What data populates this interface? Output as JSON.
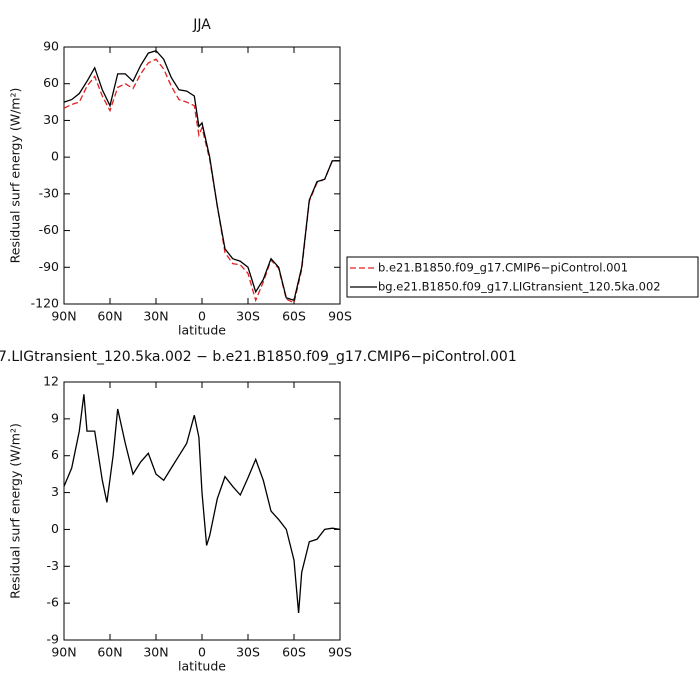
{
  "chart_data": [
    {
      "type": "line",
      "title": "JJA",
      "xlabel": "latitude",
      "ylabel": "Residual surf energy (W/m²)",
      "x": [
        90,
        85,
        80,
        75,
        70,
        65,
        60,
        55,
        50,
        45,
        40,
        35,
        30,
        25,
        20,
        15,
        10,
        5,
        2,
        0,
        -5,
        -10,
        -15,
        -20,
        -25,
        -30,
        -35,
        -40,
        -45,
        -50,
        -55,
        -60,
        -65,
        -70,
        -75,
        -80,
        -85,
        -90
      ],
      "series": [
        {
          "name": "b.e21.B1850.f09_g17.CMIP6−piControl.001",
          "color": "#e02020",
          "line_style": "dashed",
          "values": [
            40,
            43,
            45,
            58,
            66,
            50,
            38,
            57,
            60,
            56,
            68,
            77,
            80,
            72,
            58,
            47,
            45,
            42,
            18,
            24,
            -2,
            -40,
            -78,
            -87,
            -88,
            -95,
            -117,
            -102,
            -84,
            -91,
            -116,
            -119,
            -92,
            -36,
            -21,
            -18,
            -3,
            -3
          ]
        },
        {
          "name": "bg.e21.B1850.f09_g17.LIGtransient_120.5ka.002",
          "color": "#000000",
          "line_style": "solid",
          "values": [
            45,
            47,
            52,
            62,
            73,
            55,
            42,
            68,
            68,
            62,
            75,
            85,
            87,
            80,
            65,
            55,
            54,
            50,
            25,
            28,
            0,
            -40,
            -75,
            -83,
            -85,
            -90,
            -110,
            -100,
            -83,
            -90,
            -115,
            -117,
            -90,
            -35,
            -20,
            -18,
            -3,
            -3
          ]
        }
      ],
      "xlim": [
        90,
        -90
      ],
      "xticks": [
        {
          "value": 90,
          "label": "90N"
        },
        {
          "value": 60,
          "label": "60N"
        },
        {
          "value": 30,
          "label": "30N"
        },
        0,
        {
          "value": -30,
          "label": "30S"
        },
        {
          "value": -60,
          "label": "60S"
        },
        {
          "value": -90,
          "label": "90S"
        }
      ],
      "ylim": [
        -120,
        90
      ],
      "yticks": [
        -120,
        -90,
        -60,
        -30,
        0,
        30,
        60,
        90
      ],
      "legend": "outside-right"
    },
    {
      "type": "line",
      "title": "7.LIGtransient_120.5ka.002 − b.e21.B1850.f09_g17.CMIP6−piControl.001",
      "xlabel": "latitude",
      "ylabel": "Residual surf energy (W/m²)",
      "x": [
        90,
        85,
        80,
        77,
        75,
        70,
        65,
        62,
        58,
        55,
        50,
        45,
        40,
        35,
        30,
        25,
        20,
        15,
        10,
        5,
        2,
        0,
        -3,
        -5,
        -10,
        -15,
        -20,
        -25,
        -30,
        -35,
        -40,
        -45,
        -50,
        -55,
        -60,
        -63,
        -65,
        -70,
        -75,
        -80,
        -85,
        -90
      ],
      "color": "#000000",
      "line_style": "solid",
      "values": [
        3.5,
        5,
        8,
        11,
        8,
        8,
        4,
        2.2,
        6,
        9.8,
        7,
        4.5,
        5.5,
        6.2,
        4.5,
        4,
        5,
        6,
        7,
        9.3,
        7.5,
        3,
        -1.3,
        -0.5,
        2.5,
        4.3,
        3.5,
        2.8,
        4.2,
        5.7,
        4,
        1.5,
        0.8,
        0,
        -2.5,
        -6.8,
        -3.5,
        -1,
        -0.8,
        0,
        0.1,
        0
      ],
      "xlim": [
        90,
        -90
      ],
      "xticks": [
        {
          "value": 90,
          "label": "90N"
        },
        {
          "value": 60,
          "label": "60N"
        },
        {
          "value": 30,
          "label": "30N"
        },
        0,
        {
          "value": -30,
          "label": "30S"
        },
        {
          "value": -60,
          "label": "60S"
        },
        {
          "value": -90,
          "label": "90S"
        }
      ],
      "ylim": [
        -9,
        12
      ],
      "yticks": [
        -9,
        -6,
        -3,
        0,
        3,
        6,
        9,
        12
      ]
    }
  ]
}
